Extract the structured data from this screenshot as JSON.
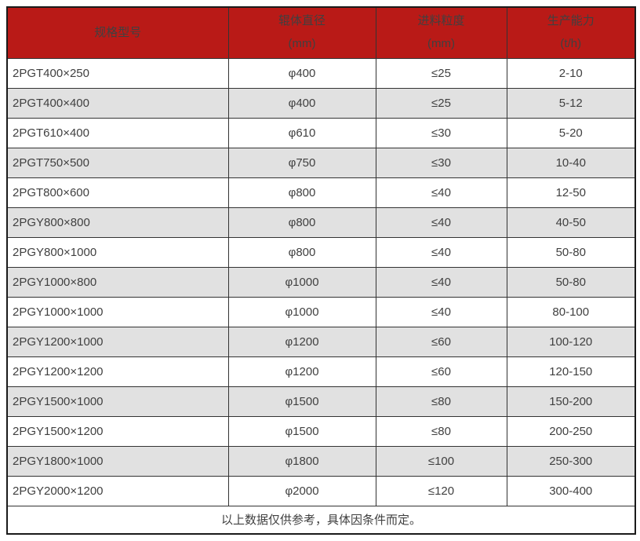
{
  "chart_data": {
    "type": "table",
    "columns": [
      {
        "title": "规格型号",
        "unit": ""
      },
      {
        "title": "辊体直径",
        "unit": "(mm)"
      },
      {
        "title": "进料粒度",
        "unit": "(mm)"
      },
      {
        "title": "生产能力",
        "unit": "(t/h)"
      }
    ],
    "rows": [
      [
        "2PGT400×250",
        "φ400",
        "≤25",
        "2-10"
      ],
      [
        "2PGT400×400",
        "φ400",
        "≤25",
        "5-12"
      ],
      [
        "2PGT610×400",
        "φ610",
        "≤30",
        "5-20"
      ],
      [
        "2PGT750×500",
        "φ750",
        "≤30",
        "10-40"
      ],
      [
        "2PGT800×600",
        "φ800",
        "≤40",
        "12-50"
      ],
      [
        "2PGY800×800",
        "φ800",
        "≤40",
        "40-50"
      ],
      [
        "2PGY800×1000",
        "φ800",
        "≤40",
        "50-80"
      ],
      [
        "2PGY1000×800",
        "φ1000",
        "≤40",
        "50-80"
      ],
      [
        "2PGY1000×1000",
        "φ1000",
        "≤40",
        "80-100"
      ],
      [
        "2PGY1200×1000",
        "φ1200",
        "≤60",
        "100-120"
      ],
      [
        "2PGY1200×1200",
        "φ1200",
        "≤60",
        "120-150"
      ],
      [
        "2PGY1500×1000",
        "φ1500",
        "≤80",
        "150-200"
      ],
      [
        "2PGY1500×1200",
        "φ1500",
        "≤80",
        "200-250"
      ],
      [
        "2PGY1800×1000",
        "φ1800",
        "≤100",
        "250-300"
      ],
      [
        "2PGY2000×1200",
        "φ2000",
        "≤120",
        "300-400"
      ]
    ],
    "footer_note": "以上数据仅供参考，具体因条件而定。",
    "layout_hints": {
      "striped": "even rows shaded",
      "first_column_align": "left",
      "other_columns_align": "center"
    }
  },
  "colors": {
    "header_bg": "#b91a17",
    "header_text": "#ffffff",
    "row_alt_bg": "#e1e1e1",
    "row_bg": "#ffffff",
    "border_inner": "#333333",
    "border_outer": "#1a1a1a",
    "text": "#404040"
  }
}
